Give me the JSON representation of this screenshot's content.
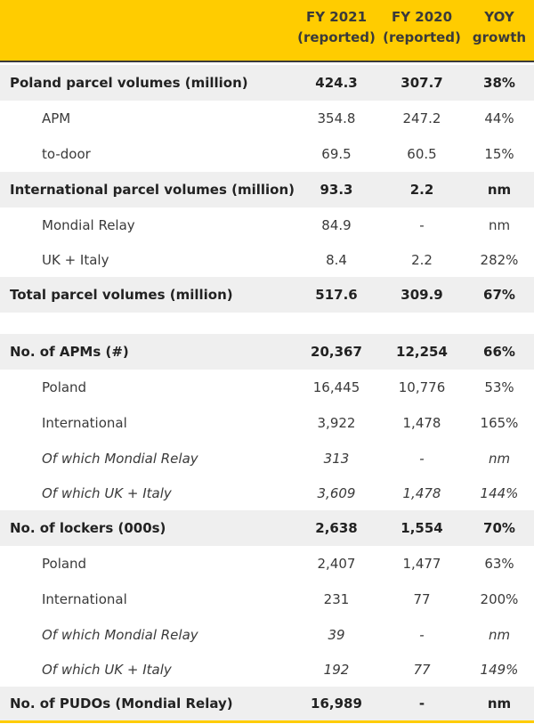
{
  "header": {
    "col1": "FY 2021\n(reported)",
    "col2": "FY 2020\n(reported)",
    "col3": "YOY\ngrowth"
  },
  "rows": [
    {
      "label": "Poland parcel volumes (million)",
      "fy2021": "424.3",
      "fy2020": "307.7",
      "yoy": "38%"
    },
    {
      "label": "APM",
      "fy2021": "354.8",
      "fy2020": "247.2",
      "yoy": "44%"
    },
    {
      "label": "to-door",
      "fy2021": "69.5",
      "fy2020": "60.5",
      "yoy": "15%"
    },
    {
      "label": "International parcel volumes (million)",
      "fy2021": "93.3",
      "fy2020": "2.2",
      "yoy": "nm"
    },
    {
      "label": "Mondial Relay",
      "fy2021": "84.9",
      "fy2020": "-",
      "yoy": "nm"
    },
    {
      "label": "UK + Italy",
      "fy2021": "8.4",
      "fy2020": "2.2",
      "yoy": "282%"
    },
    {
      "label": "Total parcel volumes (million)",
      "fy2021": "517.6",
      "fy2020": "309.9",
      "yoy": "67%"
    },
    {
      "label": "No. of APMs (#)",
      "fy2021": "20,367",
      "fy2020": "12,254",
      "yoy": "66%"
    },
    {
      "label": "Poland",
      "fy2021": "16,445",
      "fy2020": "10,776",
      "yoy": "53%"
    },
    {
      "label": "International",
      "fy2021": "3,922",
      "fy2020": "1,478",
      "yoy": "165%"
    },
    {
      "label": "Of which Mondial Relay",
      "fy2021": "313",
      "fy2020": "-",
      "yoy": "nm"
    },
    {
      "label": "Of which UK + Italy",
      "fy2021": "3,609",
      "fy2020": "1,478",
      "yoy": "144%"
    },
    {
      "label": "No. of lockers (000s)",
      "fy2021": "2,638",
      "fy2020": "1,554",
      "yoy": "70%"
    },
    {
      "label": "Poland",
      "fy2021": "2,407",
      "fy2020": "1,477",
      "yoy": "63%"
    },
    {
      "label": "International",
      "fy2021": "231",
      "fy2020": "77",
      "yoy": "200%"
    },
    {
      "label": "Of which Mondial Relay",
      "fy2021": "39",
      "fy2020": "-",
      "yoy": "nm"
    },
    {
      "label": "Of which UK + Italy",
      "fy2021": "192",
      "fy2020": "77",
      "yoy": "149%"
    },
    {
      "label": "No. of PUDOs (Mondial Relay)",
      "fy2021": "16,989",
      "fy2020": "-",
      "yoy": "nm"
    }
  ],
  "colors": {
    "accent": "#ffcc00",
    "bold_row_bg": "#efefef"
  }
}
